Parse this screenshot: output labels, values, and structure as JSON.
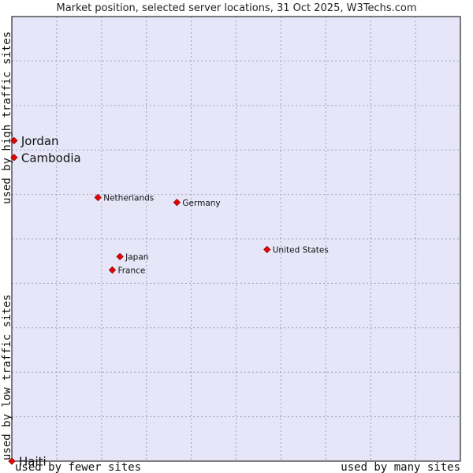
{
  "chart_data": {
    "type": "scatter",
    "title": "Market position, selected server locations, 31 Oct 2025, W3Techs.com",
    "xlabel_left": "used by fewer sites",
    "xlabel_right": "used by many sites",
    "ylabel_bottom": "used by low traffic sites",
    "ylabel_top": "used by high traffic sites",
    "xlim": [
      0,
      100
    ],
    "ylim": [
      0,
      100
    ],
    "grid": true,
    "colors": {
      "plot_background": "#e6e6f8",
      "grid": "#a0a0c0",
      "border": "#000000",
      "point": "#ee0000"
    },
    "points": [
      {
        "label": "Jordan",
        "x": 0.5,
        "y": 72.1,
        "emphasis": true
      },
      {
        "label": "Cambodia",
        "x": 0.5,
        "y": 68.3,
        "emphasis": true
      },
      {
        "label": "Netherlands",
        "x": 19.2,
        "y": 59.3,
        "emphasis": false
      },
      {
        "label": "Germany",
        "x": 36.8,
        "y": 58.2,
        "emphasis": false
      },
      {
        "label": "United States",
        "x": 56.9,
        "y": 47.6,
        "emphasis": false
      },
      {
        "label": "Japan",
        "x": 24.1,
        "y": 46.0,
        "emphasis": false
      },
      {
        "label": "France",
        "x": 22.4,
        "y": 43.0,
        "emphasis": false
      },
      {
        "label": "Haiti",
        "x": 0.0,
        "y": 0.0,
        "emphasis": true
      }
    ]
  }
}
